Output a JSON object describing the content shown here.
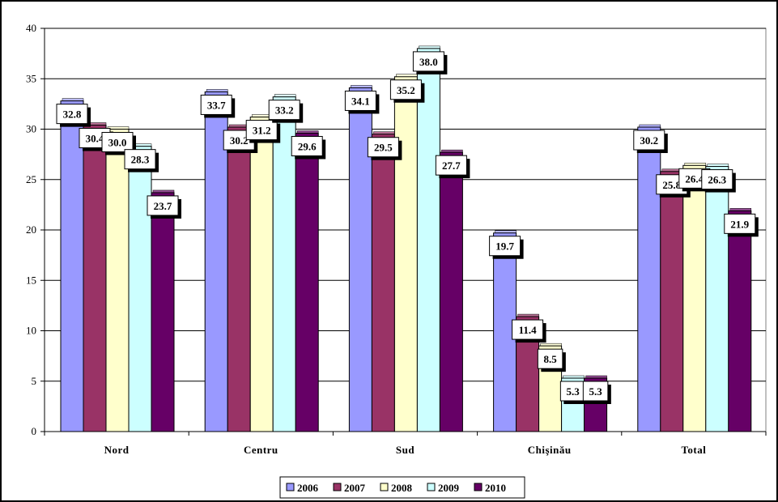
{
  "chart_data": {
    "type": "bar",
    "categories": [
      "Nord",
      "Centru",
      "Sud",
      "Chişinău",
      "Total"
    ],
    "series": [
      {
        "name": "2006",
        "color": "#9999ff",
        "values": [
          32.8,
          33.7,
          34.1,
          19.7,
          30.2
        ]
      },
      {
        "name": "2007",
        "color": "#993366",
        "values": [
          30.4,
          30.2,
          29.5,
          11.4,
          25.8
        ]
      },
      {
        "name": "2008",
        "color": "#ffffcc",
        "values": [
          30.0,
          31.2,
          35.2,
          8.5,
          26.4
        ]
      },
      {
        "name": "2009",
        "color": "#ccffff",
        "values": [
          28.3,
          33.2,
          38.0,
          5.3,
          26.3
        ]
      },
      {
        "name": "2010",
        "color": "#660066",
        "values": [
          23.7,
          29.6,
          27.7,
          5.3,
          21.9
        ]
      }
    ],
    "data_labels": [
      [
        "32.8",
        "33.7",
        "34.1",
        "19.7",
        "30.2"
      ],
      [
        "30.4",
        "30.2",
        "29.5",
        "11.4",
        "25.8"
      ],
      [
        "30.0",
        "31.2",
        "35.2",
        "8.5",
        "26.4"
      ],
      [
        "28.3",
        "33.2",
        "38.0",
        "5.3",
        "26.3"
      ],
      [
        "23.7",
        "29.6",
        "27.7",
        "5.3",
        "21.9"
      ]
    ],
    "ylim": [
      0,
      40
    ],
    "yticks": [
      "0",
      "5",
      "10",
      "15",
      "20",
      "25",
      "30",
      "35",
      "40"
    ],
    "grid": true,
    "legend": "bottom-center",
    "title": "",
    "xlabel": "",
    "ylabel": ""
  }
}
